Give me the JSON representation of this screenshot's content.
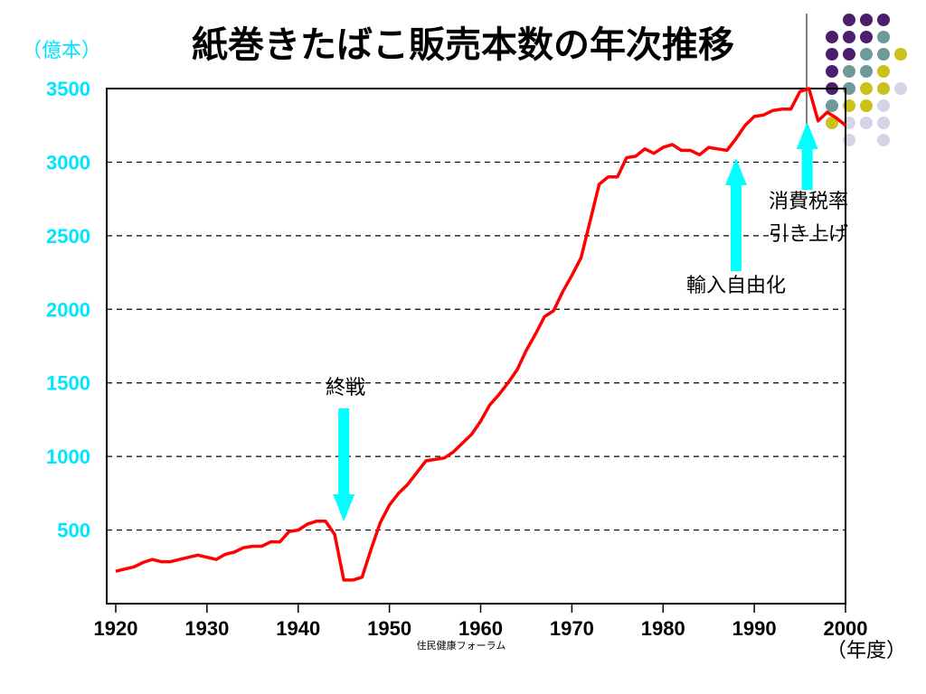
{
  "chart_data": {
    "type": "line",
    "title": "紙巻きたばこ販売本数の年次推移",
    "ylabel": "（億本）",
    "xlabel": "（年度）",
    "ylim": [
      0,
      3500
    ],
    "xlim": [
      1920,
      2000
    ],
    "yticks": [
      500,
      1000,
      1500,
      2000,
      2500,
      3000,
      3500
    ],
    "xticks": [
      1920,
      1930,
      1940,
      1950,
      1960,
      1970,
      1980,
      1990,
      2000
    ],
    "grid": "horizontal-dashed",
    "series": [
      {
        "color": "#ff0000",
        "x": [
          1920,
          1921,
          1922,
          1923,
          1924,
          1925,
          1926,
          1927,
          1928,
          1929,
          1930,
          1931,
          1932,
          1933,
          1934,
          1935,
          1936,
          1937,
          1938,
          1939,
          1940,
          1941,
          1942,
          1943,
          1944,
          1945,
          1946,
          1947,
          1948,
          1949,
          1950,
          1951,
          1952,
          1953,
          1954,
          1955,
          1956,
          1957,
          1958,
          1959,
          1960,
          1961,
          1962,
          1963,
          1964,
          1965,
          1966,
          1967,
          1968,
          1969,
          1970,
          1971,
          1972,
          1973,
          1974,
          1975,
          1976,
          1977,
          1978,
          1979,
          1980,
          1981,
          1982,
          1983,
          1984,
          1985,
          1986,
          1987,
          1988,
          1989,
          1990,
          1991,
          1992,
          1993,
          1994,
          1995,
          1996,
          1997,
          1998,
          1999,
          2000
        ],
        "values": [
          220,
          235,
          250,
          280,
          300,
          285,
          285,
          300,
          315,
          330,
          315,
          300,
          335,
          350,
          380,
          390,
          390,
          420,
          420,
          490,
          500,
          540,
          560,
          560,
          470,
          160,
          160,
          180,
          370,
          550,
          670,
          750,
          810,
          890,
          970,
          980,
          990,
          1030,
          1090,
          1150,
          1240,
          1350,
          1420,
          1500,
          1590,
          1720,
          1830,
          1950,
          1990,
          2120,
          2230,
          2350,
          2600,
          2850,
          2900,
          2900,
          3030,
          3040,
          3090,
          3060,
          3100,
          3120,
          3080,
          3080,
          3050,
          3100,
          3090,
          3080,
          3160,
          3250,
          3310,
          3320,
          3350,
          3360,
          3360,
          3480,
          3500,
          3280,
          3340,
          3300,
          3250
        ]
      }
    ],
    "annotations": [
      {
        "text": "終戦",
        "arrow": "down",
        "x": 1945
      },
      {
        "text": "輸入自由化",
        "arrow": "up",
        "x": 1988
      },
      {
        "text": "消費税率",
        "text2": "引き上げ",
        "arrow": "up",
        "x": 1996
      }
    ]
  },
  "credit": "住民健康フォーラム",
  "colors": {
    "axis_tick_color": "#00e5ff",
    "arrow_color": "#00ffff",
    "line_color": "#ff0000",
    "dot_purple": "#4b1e6e",
    "dot_teal": "#6e9a9a",
    "dot_yellow": "#c9c21a",
    "dot_lavender": "#d4d4e6"
  }
}
